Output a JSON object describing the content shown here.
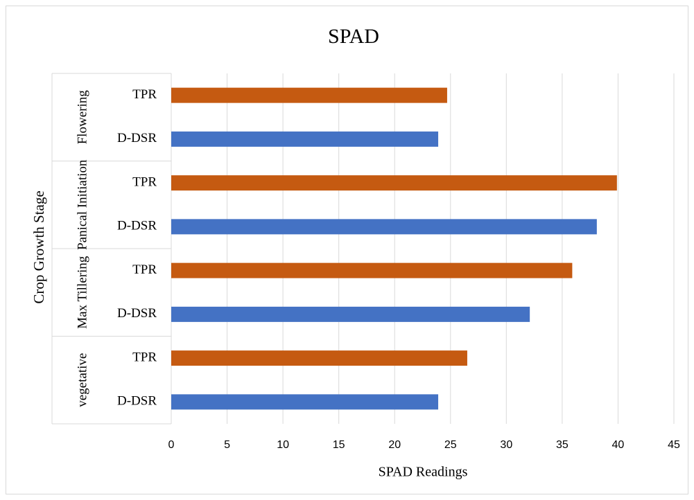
{
  "chart_data": {
    "type": "bar",
    "orientation": "horizontal",
    "title": "SPAD",
    "x_label": "SPAD Readings",
    "y_label": "Crop Growth Stage",
    "categories": [
      "vegetative",
      "Max Tillering",
      "Panical Initiation",
      "Flowering"
    ],
    "series": [
      {
        "name": "D-DSR",
        "color": "#4472c4",
        "values": [
          23.9,
          32.1,
          38.1,
          23.9
        ]
      },
      {
        "name": "TPR",
        "color": "#c55a11",
        "values": [
          26.5,
          35.9,
          39.9,
          24.7
        ]
      }
    ],
    "xlim": [
      0,
      45
    ],
    "xticks": [
      0,
      5,
      10,
      15,
      20,
      25,
      30,
      35,
      40,
      45
    ],
    "grid": true
  }
}
